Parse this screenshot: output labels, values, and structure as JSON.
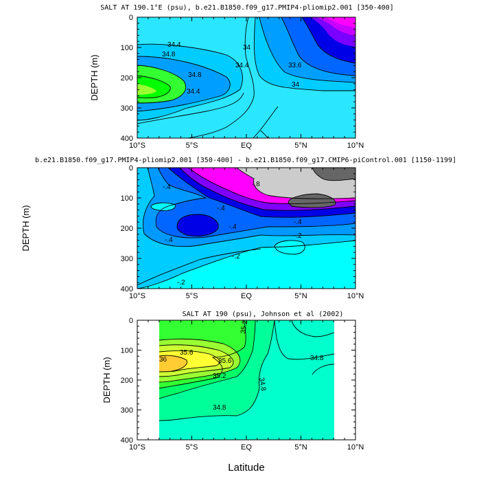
{
  "chart_data": [
    {
      "type": "contour",
      "title": "SALT AT 190.1°E (psu), b.e21.B1850.f09_g17.PMIP4-pliomip2.001 [350-400]",
      "xlabel": "",
      "ylabel": "DEPTH (m)",
      "x_ticks": [
        "10°S",
        "5°S",
        "EQ",
        "5°N",
        "10°N"
      ],
      "y_ticks": [
        "0",
        "100",
        "200",
        "300",
        "400"
      ],
      "xlim": [
        -10,
        10
      ],
      "ylim": [
        400,
        0
      ],
      "contour_labels": [
        "34.4",
        "34.8",
        "34.8",
        "34.4",
        "34",
        "34.4",
        "33.6",
        "34"
      ],
      "colors": [
        "#2ae6ff",
        "#00ccff",
        "#009fff",
        "#0066ff",
        "#0000e6",
        "#7a00ff",
        "#c800ff",
        "#ff00ff",
        "#33ff33",
        "#00ff00",
        "#99ff33"
      ]
    },
    {
      "type": "contour",
      "title": "b.e21.B1850.f09_g17.PMIP4-pliomip2.001 [350-400] - b.e21.B1850.f09_g17.CMIP6-piControl.001 [1150-1199]",
      "xlabel": "",
      "ylabel": "DEPTH (m)",
      "x_ticks": [
        "10°S",
        "5°S",
        "EQ",
        "5°N",
        "10°N"
      ],
      "y_ticks": [
        "0",
        "100",
        "200",
        "300",
        "400"
      ],
      "xlim": [
        -10,
        10
      ],
      "ylim": [
        400,
        0
      ],
      "contour_labels": [
        "-.4",
        "-.4",
        "-.8",
        "-.4",
        "-.4",
        "-.2",
        "-.2",
        "-.2",
        "-.4"
      ],
      "colors": [
        "#00ffff",
        "#00ccff",
        "#0099ff",
        "#0066ff",
        "#0000e6",
        "#8000ff",
        "#ff00ff",
        "#cccccc",
        "#666666"
      ]
    },
    {
      "type": "contour",
      "title": "SALT AT 190 (psu), Johnson et al (2002)",
      "xlabel": "Latitude",
      "ylabel": "DEPTH (m)",
      "x_ticks": [
        "10°S",
        "5°S",
        "EQ",
        "5°N",
        "10°N"
      ],
      "y_ticks": [
        "0",
        "100",
        "200",
        "300",
        "400"
      ],
      "xlim": [
        -10,
        10
      ],
      "ylim": [
        400,
        0
      ],
      "data_lat_range": [
        -8,
        8
      ],
      "contour_labels": [
        "35.2",
        "35.6",
        "36",
        "35.6",
        "35.2",
        "34.8",
        "34.8",
        "34.8"
      ],
      "colors": [
        "#00ffcc",
        "#00ff99",
        "#00ff66",
        "#33ff33",
        "#99ff33",
        "#ccff33",
        "#ffff33",
        "#ffcc33"
      ]
    }
  ]
}
